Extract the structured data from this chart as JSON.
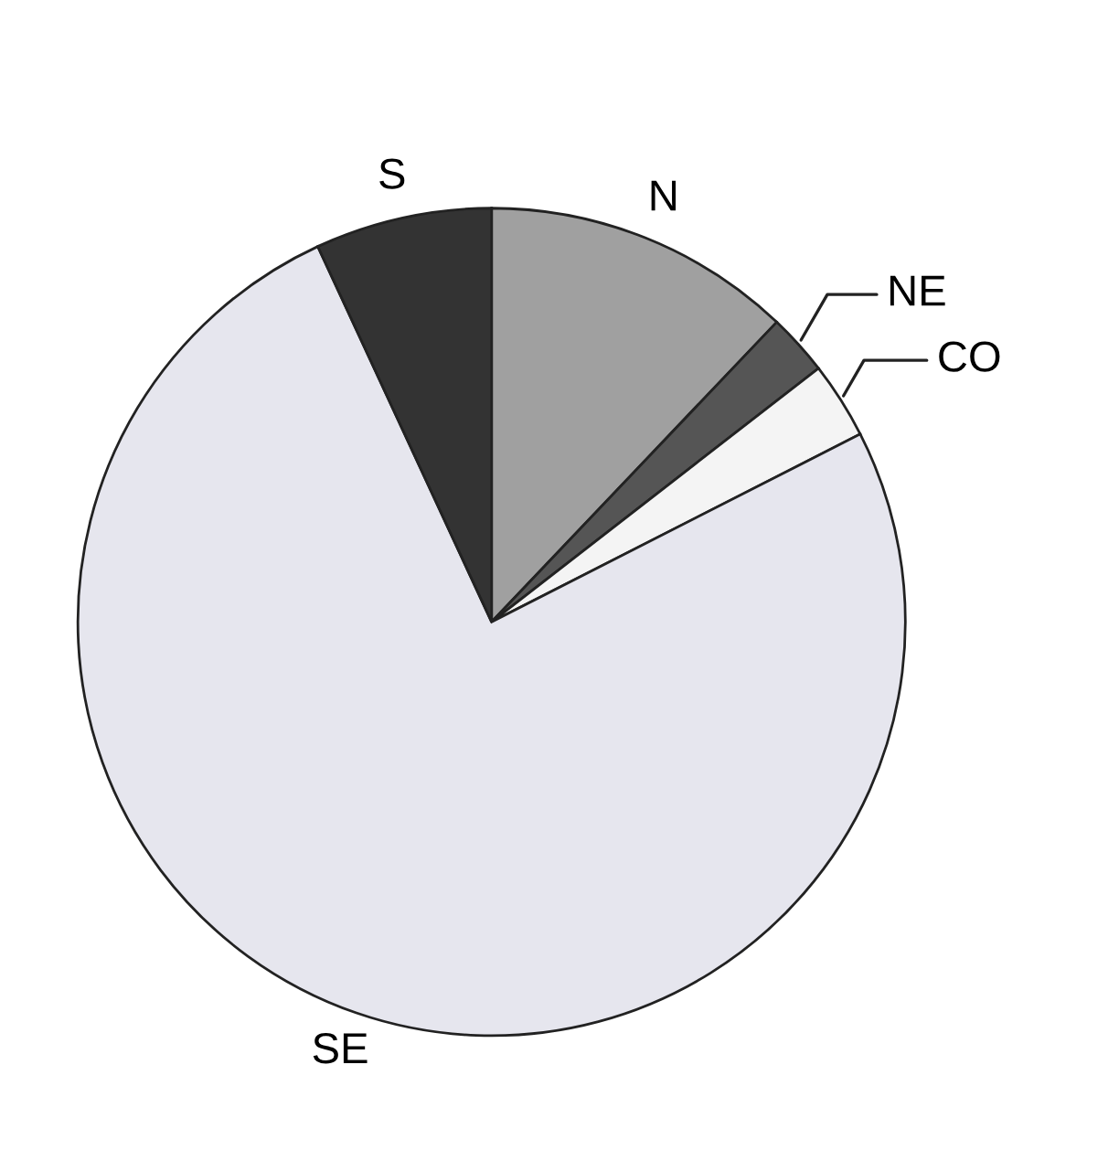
{
  "chart_data": {
    "type": "pie",
    "categories": [
      "N",
      "NE",
      "CO",
      "SE",
      "S"
    ],
    "values": [
      12.1,
      2.4,
      3.0,
      75.6,
      6.9
    ],
    "colors": [
      "#a0a0a0",
      "#555555",
      "#f4f4f4",
      "#e6e6ee",
      "#333333"
    ]
  }
}
